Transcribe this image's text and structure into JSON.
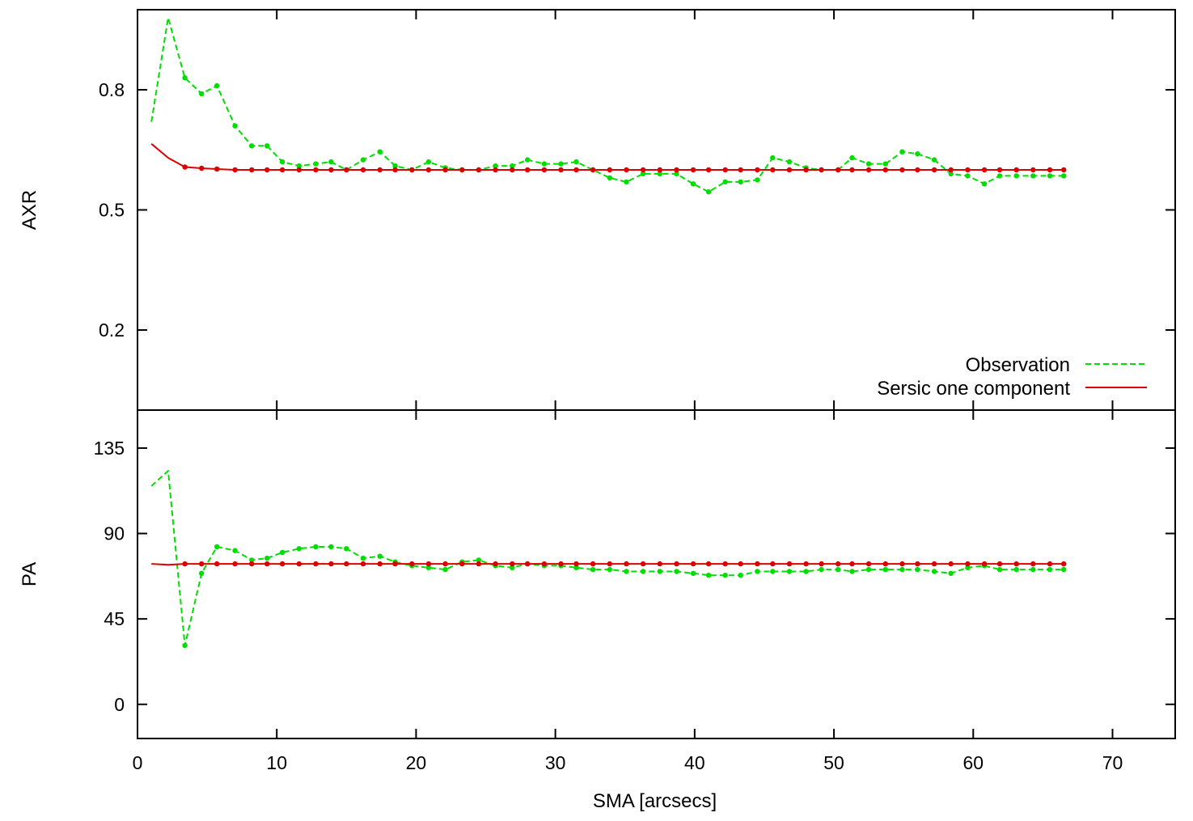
{
  "chart_data": {
    "type": "line",
    "xlabel": "SMA [arcsecs]",
    "xlim": [
      0,
      74.5
    ],
    "xticks": [
      0,
      10,
      20,
      30,
      40,
      50,
      60,
      70
    ],
    "legend": {
      "placement": "bottom-right of top panel",
      "entries": [
        {
          "label": "Observation",
          "style": "dashed",
          "color": "#00dd00"
        },
        {
          "label": "Sersic one component",
          "style": "solid",
          "color": "#dd0000"
        }
      ]
    },
    "panels": [
      {
        "name": "axr",
        "ylabel": "AXR",
        "ylim": [
          0,
          1
        ],
        "yticks": [
          0.2,
          0.5,
          0.8
        ],
        "series": [
          {
            "name": "Observation",
            "color": "#00dd00",
            "style": "dashed",
            "x": [
              1.0,
              2.2,
              3.4,
              4.6,
              5.7,
              7.0,
              8.2,
              9.3,
              10.4,
              11.6,
              12.8,
              13.9,
              15.0,
              16.2,
              17.4,
              18.5,
              19.7,
              20.9,
              22.1,
              23.3,
              24.5,
              25.7,
              26.9,
              28.0,
              29.2,
              30.4,
              31.5,
              32.7,
              33.9,
              35.1,
              36.3,
              37.5,
              38.7,
              39.9,
              41.0,
              42.2,
              43.3,
              44.5,
              45.6,
              46.8,
              48.0,
              49.1,
              50.3,
              51.3,
              52.5,
              53.7,
              54.9,
              56.0,
              57.2,
              58.4,
              59.6,
              60.8,
              61.9,
              63.1,
              64.3,
              65.5,
              66.5
            ],
            "y": [
              0.72,
              0.98,
              0.83,
              0.79,
              0.81,
              0.71,
              0.66,
              0.66,
              0.62,
              0.61,
              0.615,
              0.62,
              0.6,
              0.625,
              0.645,
              0.61,
              0.6,
              0.62,
              0.605,
              0.6,
              0.6,
              0.61,
              0.61,
              0.625,
              0.615,
              0.615,
              0.62,
              0.6,
              0.58,
              0.57,
              0.59,
              0.59,
              0.59,
              0.565,
              0.545,
              0.57,
              0.57,
              0.575,
              0.63,
              0.62,
              0.605,
              0.6,
              0.6,
              0.63,
              0.615,
              0.615,
              0.645,
              0.64,
              0.625,
              0.59,
              0.585,
              0.565,
              0.585,
              0.585,
              0.585,
              0.585,
              0.585
            ]
          },
          {
            "name": "Sersic one component",
            "color": "#dd0000",
            "style": "solid",
            "x": [
              1.0,
              2.2,
              3.4,
              4.6,
              5.7,
              7.0,
              8.2,
              9.3,
              10.4,
              11.6,
              12.8,
              13.9,
              15.0,
              16.2,
              17.4,
              18.5,
              19.7,
              20.9,
              22.1,
              23.3,
              24.5,
              25.7,
              26.9,
              28.0,
              29.2,
              30.4,
              31.5,
              32.7,
              33.9,
              35.1,
              36.3,
              37.5,
              38.7,
              39.9,
              41.0,
              42.2,
              43.3,
              44.5,
              45.6,
              46.8,
              48.0,
              49.1,
              50.3,
              51.3,
              52.5,
              53.7,
              54.9,
              56.0,
              57.2,
              58.4,
              59.6,
              60.8,
              61.9,
              63.1,
              64.3,
              65.5,
              66.5
            ],
            "y": [
              0.665,
              0.63,
              0.607,
              0.604,
              0.602,
              0.6,
              0.6,
              0.6,
              0.6,
              0.6,
              0.6,
              0.6,
              0.6,
              0.6,
              0.6,
              0.6,
              0.6,
              0.6,
              0.6,
              0.6,
              0.6,
              0.6,
              0.6,
              0.6,
              0.6,
              0.6,
              0.6,
              0.6,
              0.6,
              0.6,
              0.6,
              0.6,
              0.6,
              0.6,
              0.6,
              0.6,
              0.6,
              0.6,
              0.6,
              0.6,
              0.6,
              0.6,
              0.6,
              0.6,
              0.6,
              0.6,
              0.6,
              0.6,
              0.6,
              0.6,
              0.6,
              0.6,
              0.6,
              0.6,
              0.6,
              0.6,
              0.6
            ]
          }
        ]
      },
      {
        "name": "pa",
        "ylabel": "PA",
        "ylim": [
          -18,
          155
        ],
        "yticks": [
          0,
          45,
          90,
          135
        ],
        "series": [
          {
            "name": "Observation",
            "color": "#00dd00",
            "style": "dashed",
            "x": [
              1.0,
              2.2,
              3.4,
              4.6,
              5.7,
              7.0,
              8.2,
              9.3,
              10.4,
              11.6,
              12.8,
              13.9,
              15.0,
              16.2,
              17.4,
              18.5,
              19.7,
              20.9,
              22.1,
              23.3,
              24.5,
              25.7,
              26.9,
              28.0,
              29.2,
              30.4,
              31.5,
              32.7,
              33.9,
              35.1,
              36.3,
              37.5,
              38.7,
              39.9,
              41.0,
              42.2,
              43.3,
              44.5,
              45.6,
              46.8,
              48.0,
              49.1,
              50.3,
              51.3,
              52.5,
              53.7,
              54.9,
              56.0,
              57.2,
              58.4,
              59.6,
              60.8,
              61.9,
              63.1,
              64.3,
              65.5,
              66.5
            ],
            "y": [
              115,
              123,
              31,
              69,
              83,
              81,
              76,
              77,
              80,
              82,
              83,
              83,
              82,
              77,
              78,
              75,
              73,
              72,
              71,
              75,
              76,
              73,
              72,
              74,
              73,
              73,
              72,
              71,
              71,
              70,
              70,
              70,
              70,
              69,
              68,
              68,
              68,
              70,
              70,
              70,
              70,
              71,
              71,
              70,
              71,
              71,
              71,
              71,
              70,
              69,
              72,
              73,
              71,
              71,
              71,
              71,
              71
            ]
          },
          {
            "name": "Sersic one component",
            "color": "#dd0000",
            "style": "solid",
            "x": [
              1.0,
              2.2,
              3.4,
              4.6,
              5.7,
              7.0,
              8.2,
              9.3,
              10.4,
              11.6,
              12.8,
              13.9,
              15.0,
              16.2,
              17.4,
              18.5,
              19.7,
              20.9,
              22.1,
              23.3,
              24.5,
              25.7,
              26.9,
              28.0,
              29.2,
              30.4,
              31.5,
              32.7,
              33.9,
              35.1,
              36.3,
              37.5,
              38.7,
              39.9,
              41.0,
              42.2,
              43.3,
              44.5,
              45.6,
              46.8,
              48.0,
              49.1,
              50.3,
              51.3,
              52.5,
              53.7,
              54.9,
              56.0,
              57.2,
              58.4,
              59.6,
              60.8,
              61.9,
              63.1,
              64.3,
              65.5,
              66.5
            ],
            "y": [
              74,
              73.5,
              74,
              74,
              74,
              74,
              74,
              74,
              74,
              74,
              74,
              74,
              74,
              74,
              74,
              74,
              74,
              74,
              74,
              74,
              74,
              74,
              74,
              74,
              74,
              74,
              74,
              74,
              74,
              74,
              74,
              74,
              74,
              74,
              74,
              74,
              74,
              74,
              74,
              74,
              74,
              74,
              74,
              74,
              74,
              74,
              74,
              74,
              74,
              74,
              74,
              74,
              74,
              74,
              74,
              74,
              74
            ]
          }
        ]
      }
    ]
  }
}
